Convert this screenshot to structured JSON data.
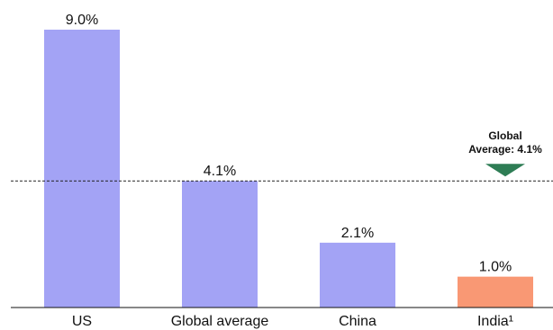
{
  "chart_data": {
    "type": "bar",
    "categories": [
      "US",
      "Global average",
      "China",
      "India¹"
    ],
    "values": [
      9.0,
      4.1,
      2.1,
      1.0
    ],
    "data_labels": [
      "9.0%",
      "4.1%",
      "2.1%",
      "1.0%"
    ],
    "bar_colors": [
      "#a3a3f5",
      "#a3a3f5",
      "#a3a3f5",
      "#f99874"
    ],
    "title": "",
    "xlabel": "",
    "ylabel": "",
    "ylim": [
      0,
      9.0
    ],
    "grid": false,
    "reference_line": {
      "value": 4.1,
      "style": "dashed",
      "label_line1": "Global",
      "label_line2": "Average: 4.1%",
      "marker_color": "#2e7d55"
    }
  }
}
